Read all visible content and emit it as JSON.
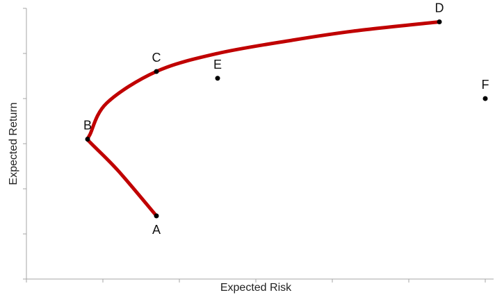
{
  "chart_data": {
    "type": "scatter",
    "title": "",
    "xlabel": "Expected Risk",
    "ylabel": "Expected Return",
    "xlim": [
      0,
      6
    ],
    "ylim": [
      0,
      6
    ],
    "grid": false,
    "x_ticks": [
      0,
      1,
      2,
      3,
      4,
      5,
      6
    ],
    "y_ticks": [
      0,
      1,
      2,
      3,
      4,
      5,
      6
    ],
    "tick_labels_shown": false,
    "frontier": {
      "color": "#c00000",
      "points": [
        [
          1.7,
          1.4
        ],
        [
          1.2,
          2.4
        ],
        [
          0.85,
          3.0
        ],
        [
          0.8,
          3.1
        ],
        [
          0.83,
          3.2
        ],
        [
          1.05,
          3.9
        ],
        [
          1.7,
          4.6
        ],
        [
          2.5,
          5.0
        ],
        [
          3.5,
          5.3
        ],
        [
          4.3,
          5.5
        ],
        [
          5.4,
          5.7
        ]
      ]
    },
    "points": [
      {
        "label": "A",
        "x": 1.7,
        "y": 1.4,
        "label_pos": "below"
      },
      {
        "label": "B",
        "x": 0.8,
        "y": 3.1,
        "label_pos": "above"
      },
      {
        "label": "C",
        "x": 1.7,
        "y": 4.6,
        "label_pos": "above"
      },
      {
        "label": "D",
        "x": 5.4,
        "y": 5.7,
        "label_pos": "above"
      },
      {
        "label": "E",
        "x": 2.5,
        "y": 4.45,
        "label_pos": "above"
      },
      {
        "label": "F",
        "x": 6.0,
        "y": 4.0,
        "label_pos": "above"
      }
    ]
  }
}
